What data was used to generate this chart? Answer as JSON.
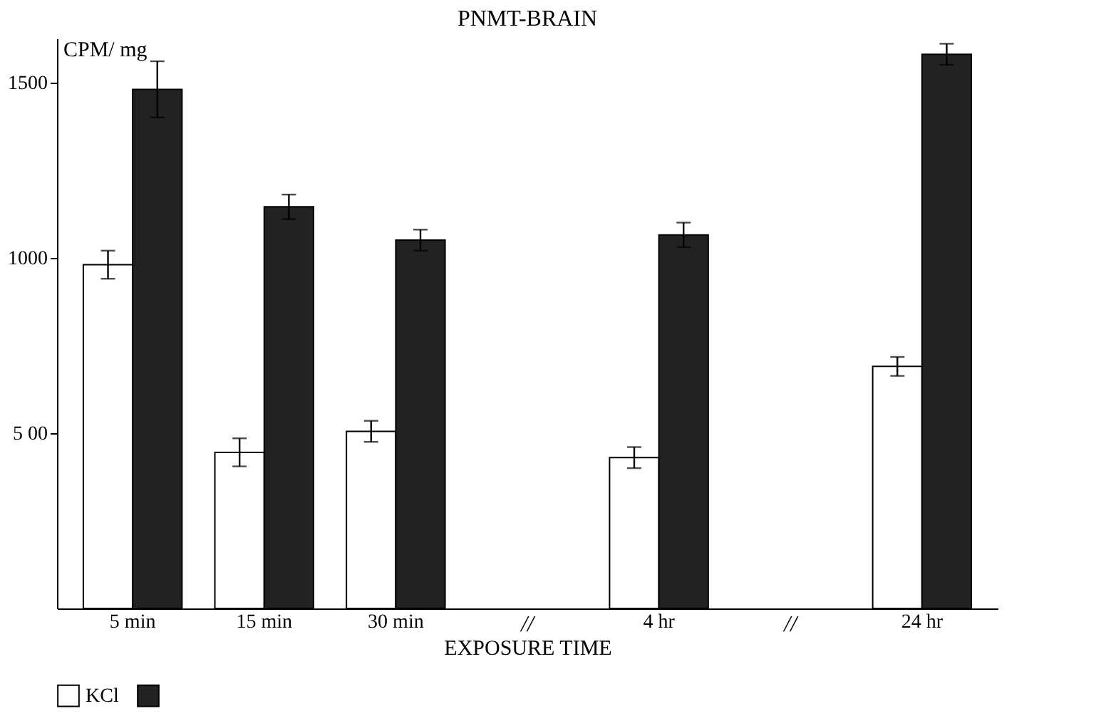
{
  "chart_data": {
    "type": "bar",
    "title": "PNMT-BRAIN",
    "xlabel": "EXPOSURE TIME",
    "ylabel": "CPM/ mg",
    "categories": [
      "5 min",
      "15 min",
      "30 min",
      null,
      "4 hr",
      null,
      "24 hr"
    ],
    "series": [
      {
        "color": "#ffffff",
        "name": "KCl",
        "values": [
          980,
          445,
          505,
          null,
          430,
          null,
          690
        ],
        "errors": [
          40,
          40,
          30,
          null,
          30,
          null,
          27
        ]
      },
      {
        "color": "#222222",
        "values": [
          1480,
          1145,
          1050,
          null,
          1065,
          null,
          1580
        ],
        "errors": [
          80,
          35,
          30,
          null,
          35,
          null,
          30
        ]
      }
    ],
    "ylim": [
      0,
      1625
    ],
    "yticks": [
      {
        "value": 500,
        "label": "5 00"
      },
      1000,
      1500
    ],
    "annotations": [
      "//",
      "//"
    ],
    "legend": "bottom",
    "grid": false
  }
}
